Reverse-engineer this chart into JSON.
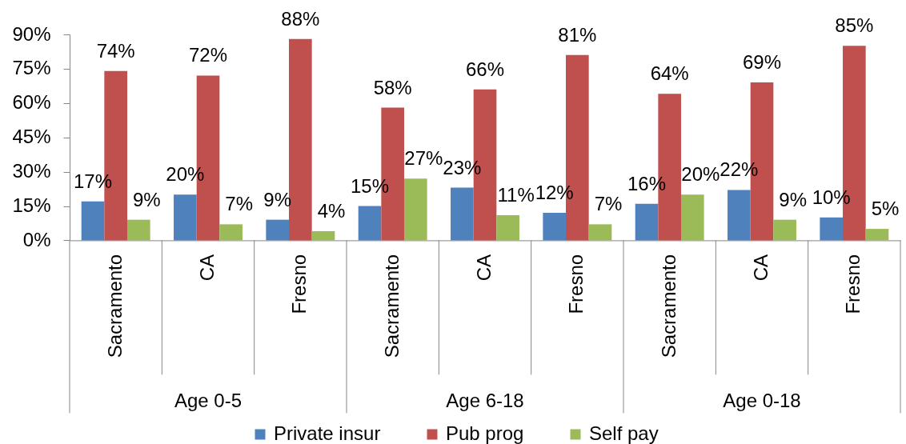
{
  "chart_data": {
    "type": "bar",
    "categories": [
      "Sacramento",
      "CA",
      "Fresno",
      "Sacramento",
      "CA",
      "Fresno",
      "Sacramento",
      "CA",
      "Fresno"
    ],
    "series": [
      {
        "name": "Private insur",
        "color": "#4f81bd",
        "values": [
          17,
          20,
          9,
          15,
          23,
          12,
          16,
          22,
          10
        ],
        "value_labels": [
          "17%",
          "20%",
          "9%",
          "15%",
          "23%",
          "12%",
          "16%",
          "22%",
          "10%"
        ]
      },
      {
        "name": "Pub prog",
        "color": "#c0504d",
        "values": [
          74,
          72,
          88,
          58,
          66,
          81,
          64,
          69,
          85
        ],
        "value_labels": [
          "74%",
          "72%",
          "88%",
          "58%",
          "66%",
          "81%",
          "64%",
          "69%",
          "85%"
        ]
      },
      {
        "name": "Self pay",
        "color": "#9bbb59",
        "values": [
          9,
          7,
          4,
          27,
          11,
          7,
          20,
          9,
          5
        ],
        "value_labels": [
          "9%",
          "7%",
          "4%",
          "27%",
          "11%",
          "7%",
          "20%",
          "9%",
          "5%"
        ]
      }
    ],
    "ylim": [
      0,
      90
    ],
    "yticks": [
      {
        "value": 0,
        "label": "0%"
      },
      {
        "value": 15,
        "label": "15%"
      },
      {
        "value": 30,
        "label": "30%"
      },
      {
        "value": 45,
        "label": "45%"
      },
      {
        "value": 60,
        "label": "60%"
      },
      {
        "value": 75,
        "label": "75%"
      },
      {
        "value": 90,
        "label": "90%"
      }
    ],
    "annotations": [
      "Age 0-5",
      "Age 6-18",
      "Age 0-18"
    ],
    "legend": "bottom"
  }
}
